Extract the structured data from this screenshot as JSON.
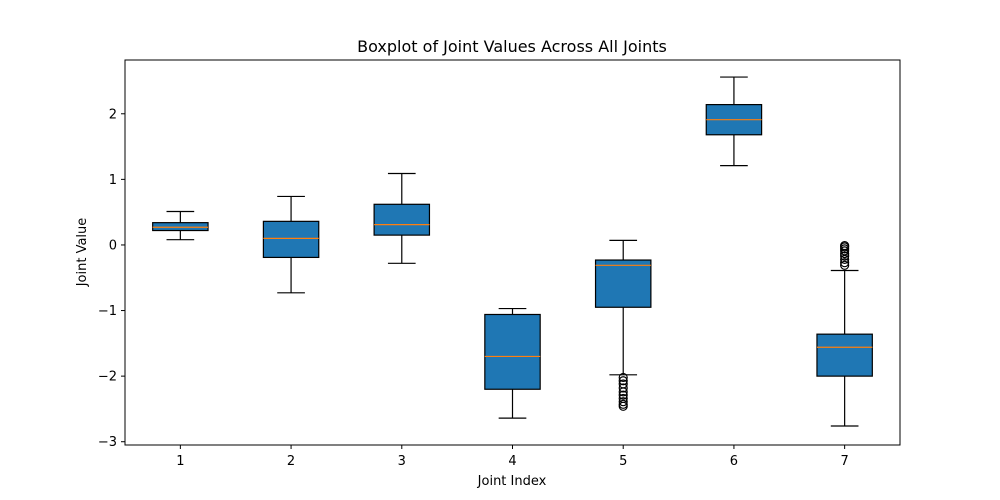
{
  "chart_data": {
    "type": "box",
    "title": "Boxplot of Joint Values Across All Joints",
    "xlabel": "Joint Index",
    "ylabel": "Joint Value",
    "categories": [
      "1",
      "2",
      "3",
      "4",
      "5",
      "6",
      "7"
    ],
    "ylim": [
      -3.05,
      2.82
    ],
    "yticks": [
      -3,
      -2,
      -1,
      0,
      1,
      2
    ],
    "ytick_labels": [
      "−3",
      "−2",
      "−1",
      "0",
      "1",
      "2"
    ],
    "box_color": "#1f77b4",
    "median_color": "#ff7f0e",
    "boxes": [
      {
        "whisker_low": 0.08,
        "q1": 0.22,
        "median": 0.27,
        "q3": 0.34,
        "whisker_high": 0.51,
        "outliers": []
      },
      {
        "whisker_low": -0.73,
        "q1": -0.19,
        "median": 0.1,
        "q3": 0.36,
        "whisker_high": 0.74,
        "outliers": []
      },
      {
        "whisker_low": -0.28,
        "q1": 0.15,
        "median": 0.31,
        "q3": 0.62,
        "whisker_high": 1.09,
        "outliers": []
      },
      {
        "whisker_low": -2.64,
        "q1": -2.2,
        "median": -1.7,
        "q3": -1.06,
        "whisker_high": -0.97,
        "outliers": []
      },
      {
        "whisker_low": -1.98,
        "q1": -0.95,
        "median": -0.31,
        "q3": -0.23,
        "whisker_high": 0.07,
        "outliers": [
          -2.02,
          -2.07,
          -2.12,
          -2.18,
          -2.24,
          -2.29,
          -2.34,
          -2.39,
          -2.43,
          -2.46
        ]
      },
      {
        "whisker_low": 1.21,
        "q1": 1.68,
        "median": 1.91,
        "q3": 2.14,
        "whisker_high": 2.56,
        "outliers": []
      },
      {
        "whisker_low": -2.76,
        "q1": -2.0,
        "median": -1.56,
        "q3": -1.36,
        "whisker_high": -0.39,
        "outliers": [
          -0.01,
          -0.03,
          -0.06,
          -0.09,
          -0.13,
          -0.17,
          -0.22,
          -0.27,
          -0.31
        ]
      }
    ]
  }
}
